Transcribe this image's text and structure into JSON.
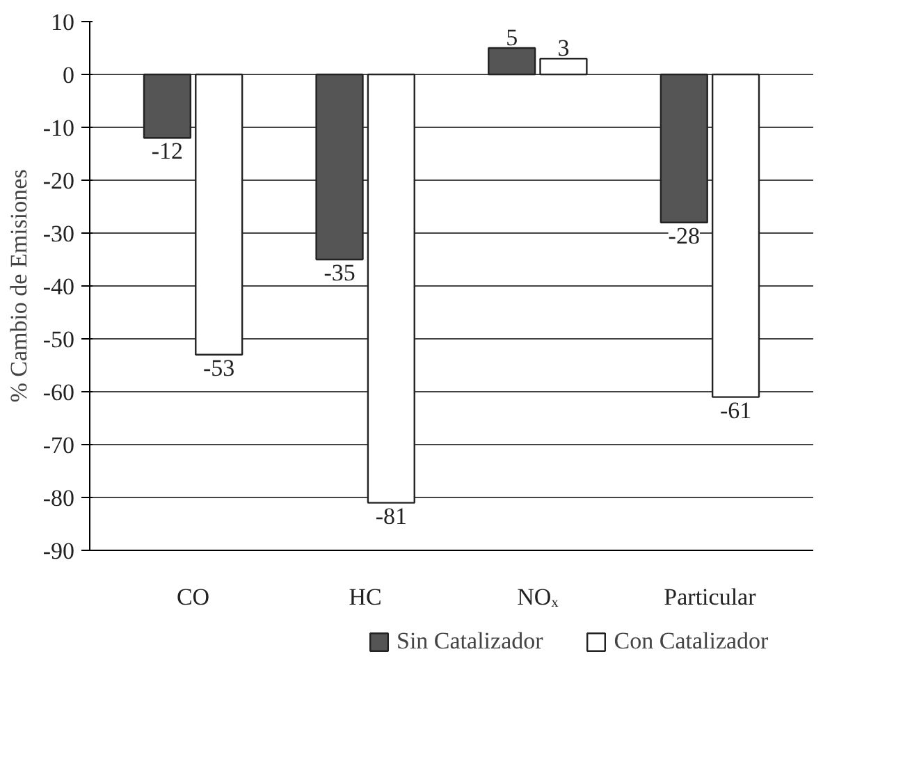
{
  "chart_data": {
    "type": "bar",
    "ylabel": "% Cambio de Emisiones",
    "categories": [
      "CO",
      "HC",
      "NOₓ",
      "Particular"
    ],
    "series": [
      {
        "name": "Sin Catalizador",
        "color": "#555555",
        "values": [
          -12,
          -35,
          5,
          -28
        ]
      },
      {
        "name": "Con Catalizador",
        "color": "#ffffff",
        "values": [
          -53,
          -81,
          3,
          -61
        ]
      }
    ],
    "ylim": [
      -90,
      10
    ],
    "yticks": [
      -90,
      -80,
      -70,
      -60,
      -50,
      -40,
      -30,
      -20,
      -10,
      0,
      10
    ],
    "grid": "y",
    "legend": "bottom",
    "data_labels": true
  }
}
